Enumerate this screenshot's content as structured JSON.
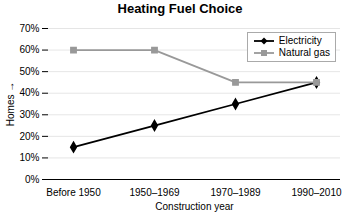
{
  "chart_data": {
    "type": "line",
    "title": "Heating Fuel Choice",
    "xlabel": "Construction year",
    "ylabel": "Homes",
    "categories": [
      "Before 1950",
      "1950–1969",
      "1970–1989",
      "1990–2010"
    ],
    "series": [
      {
        "name": "Electricity",
        "color": "#000000",
        "marker": "diamond",
        "values": [
          15,
          25,
          35,
          45
        ]
      },
      {
        "name": "Natural gas",
        "color": "#999999",
        "marker": "square",
        "values": [
          60,
          60,
          45,
          45
        ]
      }
    ],
    "ylim": [
      0,
      70
    ],
    "yticks": [
      {
        "value": 0,
        "label": "0%"
      },
      {
        "value": 10,
        "label": "10%"
      },
      {
        "value": 20,
        "label": "20%"
      },
      {
        "value": 30,
        "label": "30%"
      },
      {
        "value": 40,
        "label": "40%"
      },
      {
        "value": 50,
        "label": "50%"
      },
      {
        "value": 60,
        "label": "60%"
      },
      {
        "value": 70,
        "label": "70%"
      }
    ],
    "grid": true,
    "legend": "upper right"
  }
}
